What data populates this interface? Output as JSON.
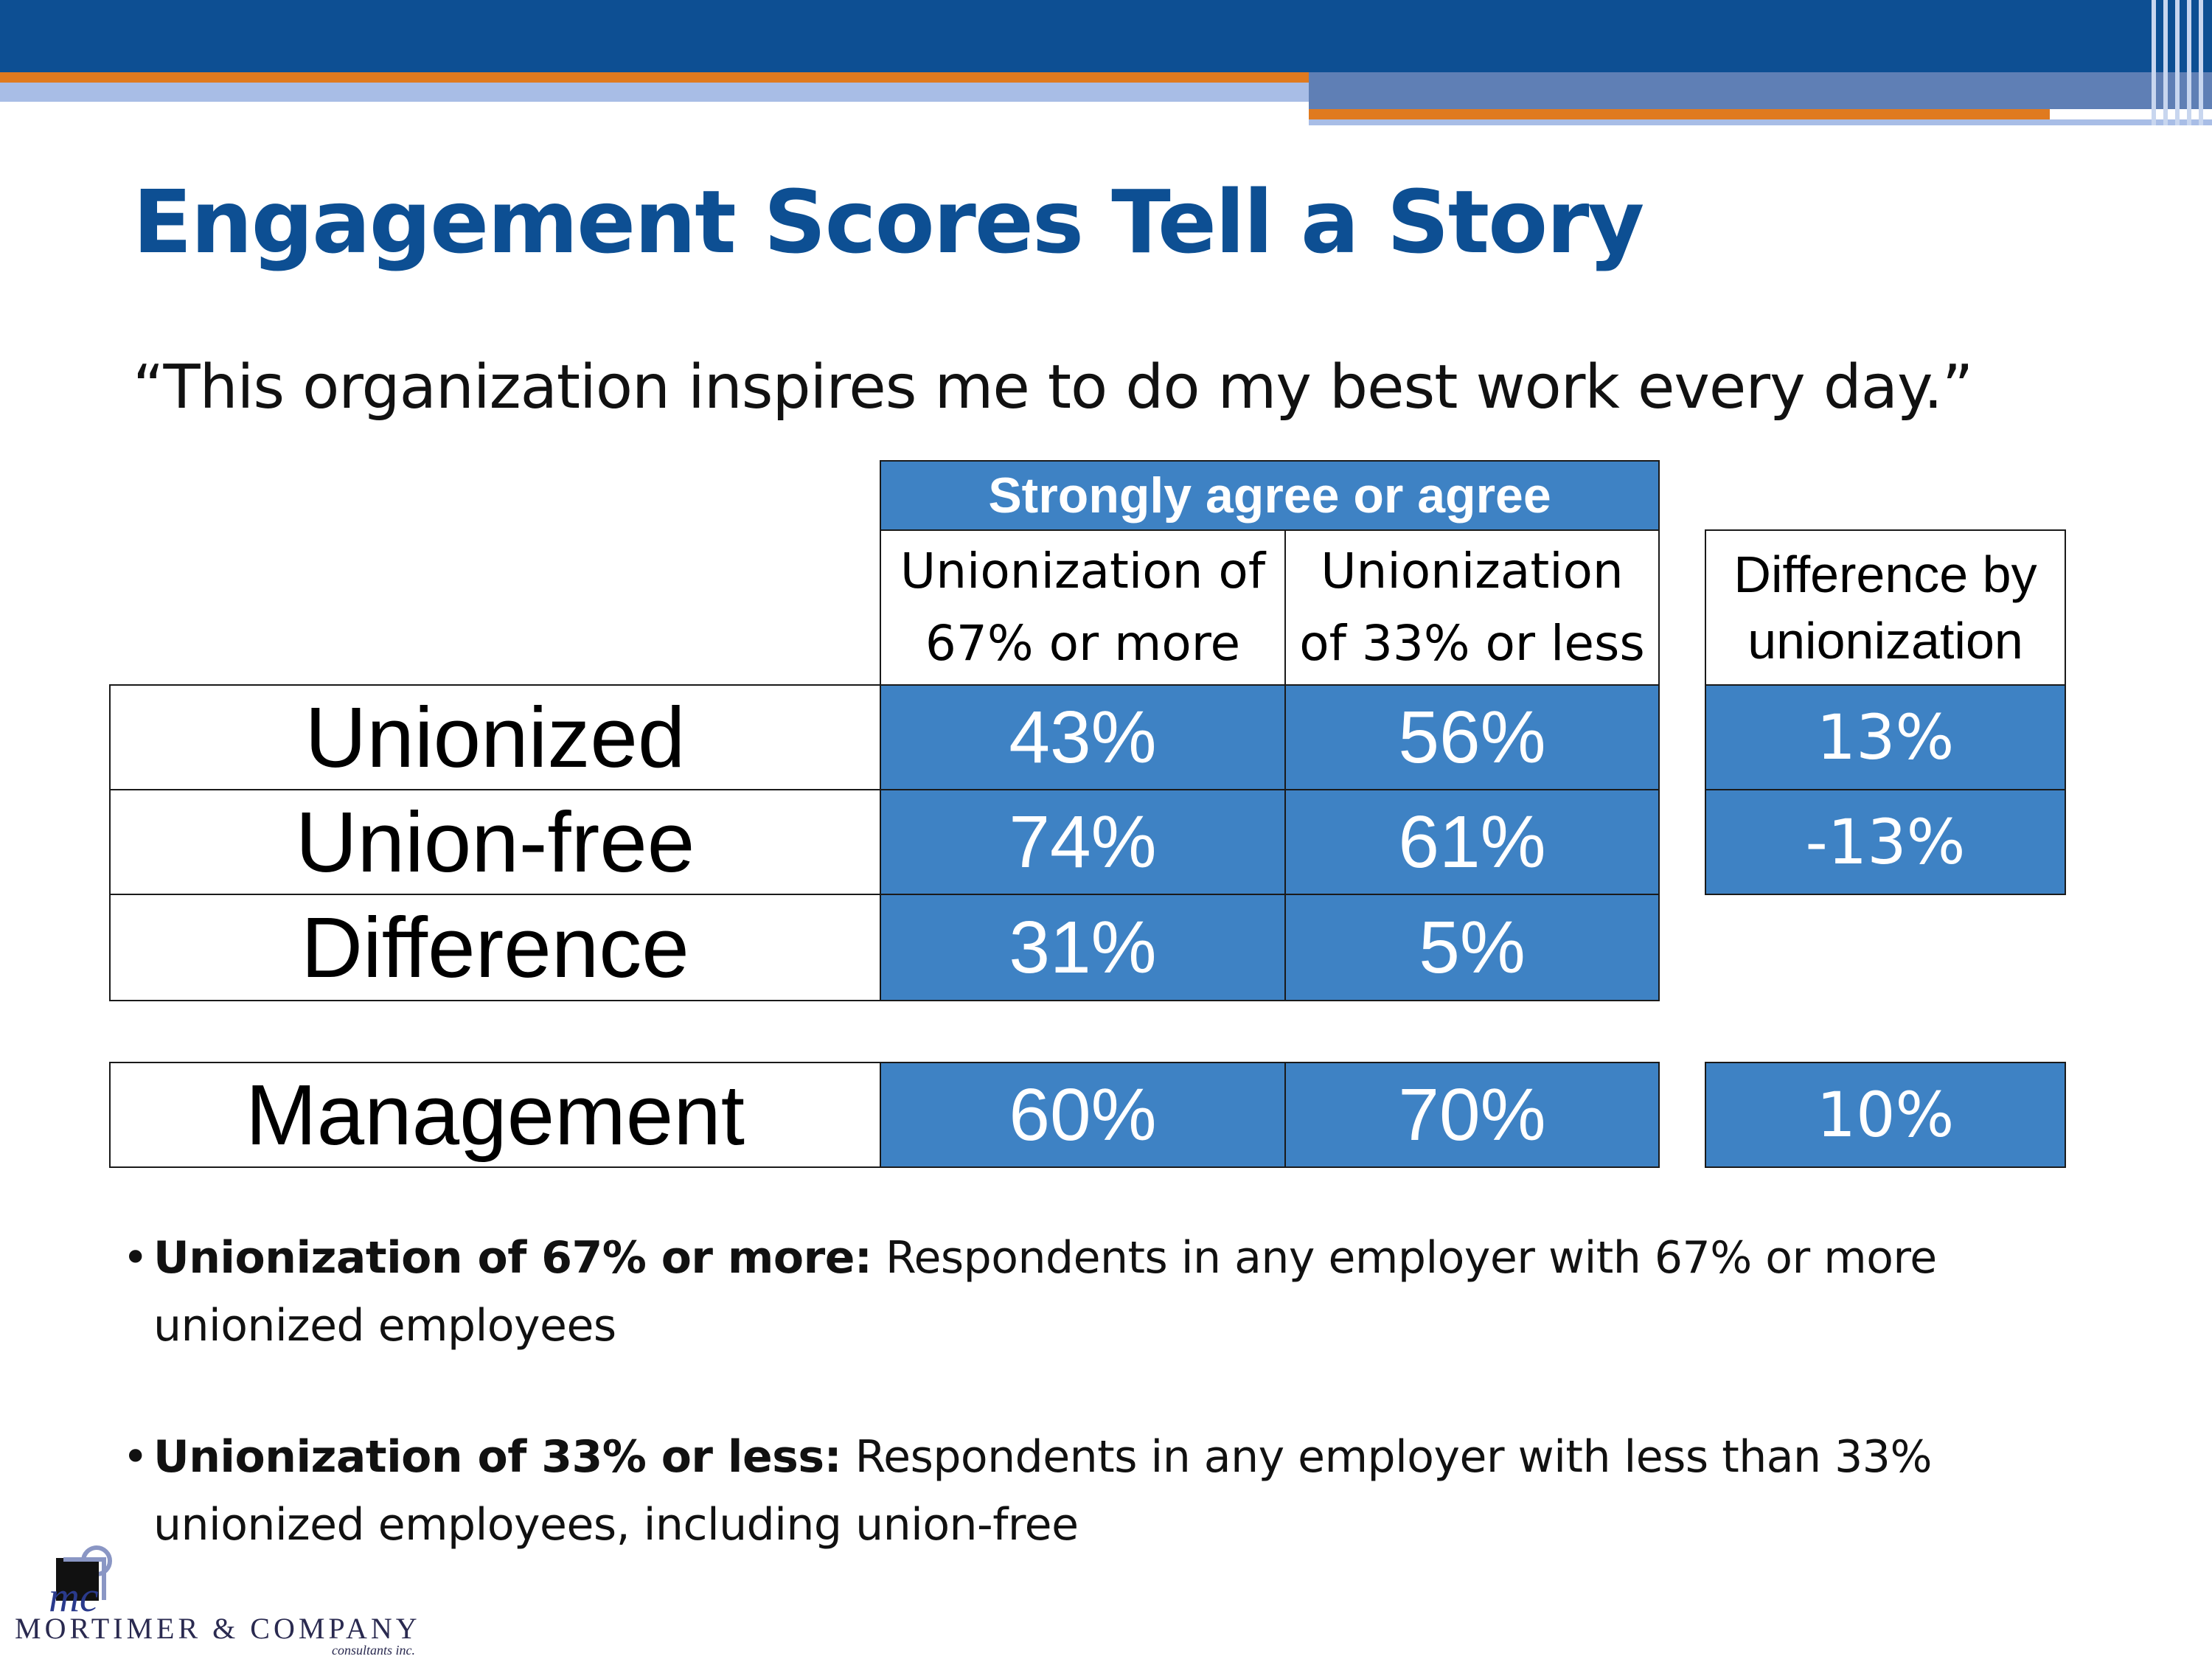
{
  "title": "Engagement Scores Tell a Story",
  "quote": "“This organization inspires me to do my best work every day.”",
  "table": {
    "group_header": "Strongly agree or agree",
    "col1_lines": [
      "Unionization of",
      "67% or more"
    ],
    "col2_lines": [
      "Unionization",
      "of 33% or less"
    ],
    "diff_header_lines": [
      "Difference by",
      "unionization"
    ],
    "rows": [
      {
        "label": "Unionized",
        "col1": "43%",
        "col2": "56%",
        "diff": "13%"
      },
      {
        "label": "Union-free",
        "col1": "74%",
        "col2": "61%",
        "diff": "-13%"
      },
      {
        "label": "Difference",
        "col1": "31%",
        "col2": "5%"
      },
      {
        "label": "Management",
        "col1": "60%",
        "col2": "70%",
        "diff": "10%"
      }
    ]
  },
  "bullets": [
    {
      "bold": "Unionization of 67% or more:",
      "text": " Respondents in any employer with 67% or more",
      "text2": "unionized employees"
    },
    {
      "bold": "Unionization of 33% or less:",
      "text": " Respondents in any employer with less than 33%",
      "text2": "unionized employees, including union-free"
    }
  ],
  "logo": {
    "mark": "mc",
    "name": "MORTIMER & COMPANY",
    "sub": "consultants inc."
  },
  "colors": {
    "brand_blue": "#0d4f93",
    "cell_blue": "#3e82c4",
    "accent_orange": "#e07a1f"
  }
}
